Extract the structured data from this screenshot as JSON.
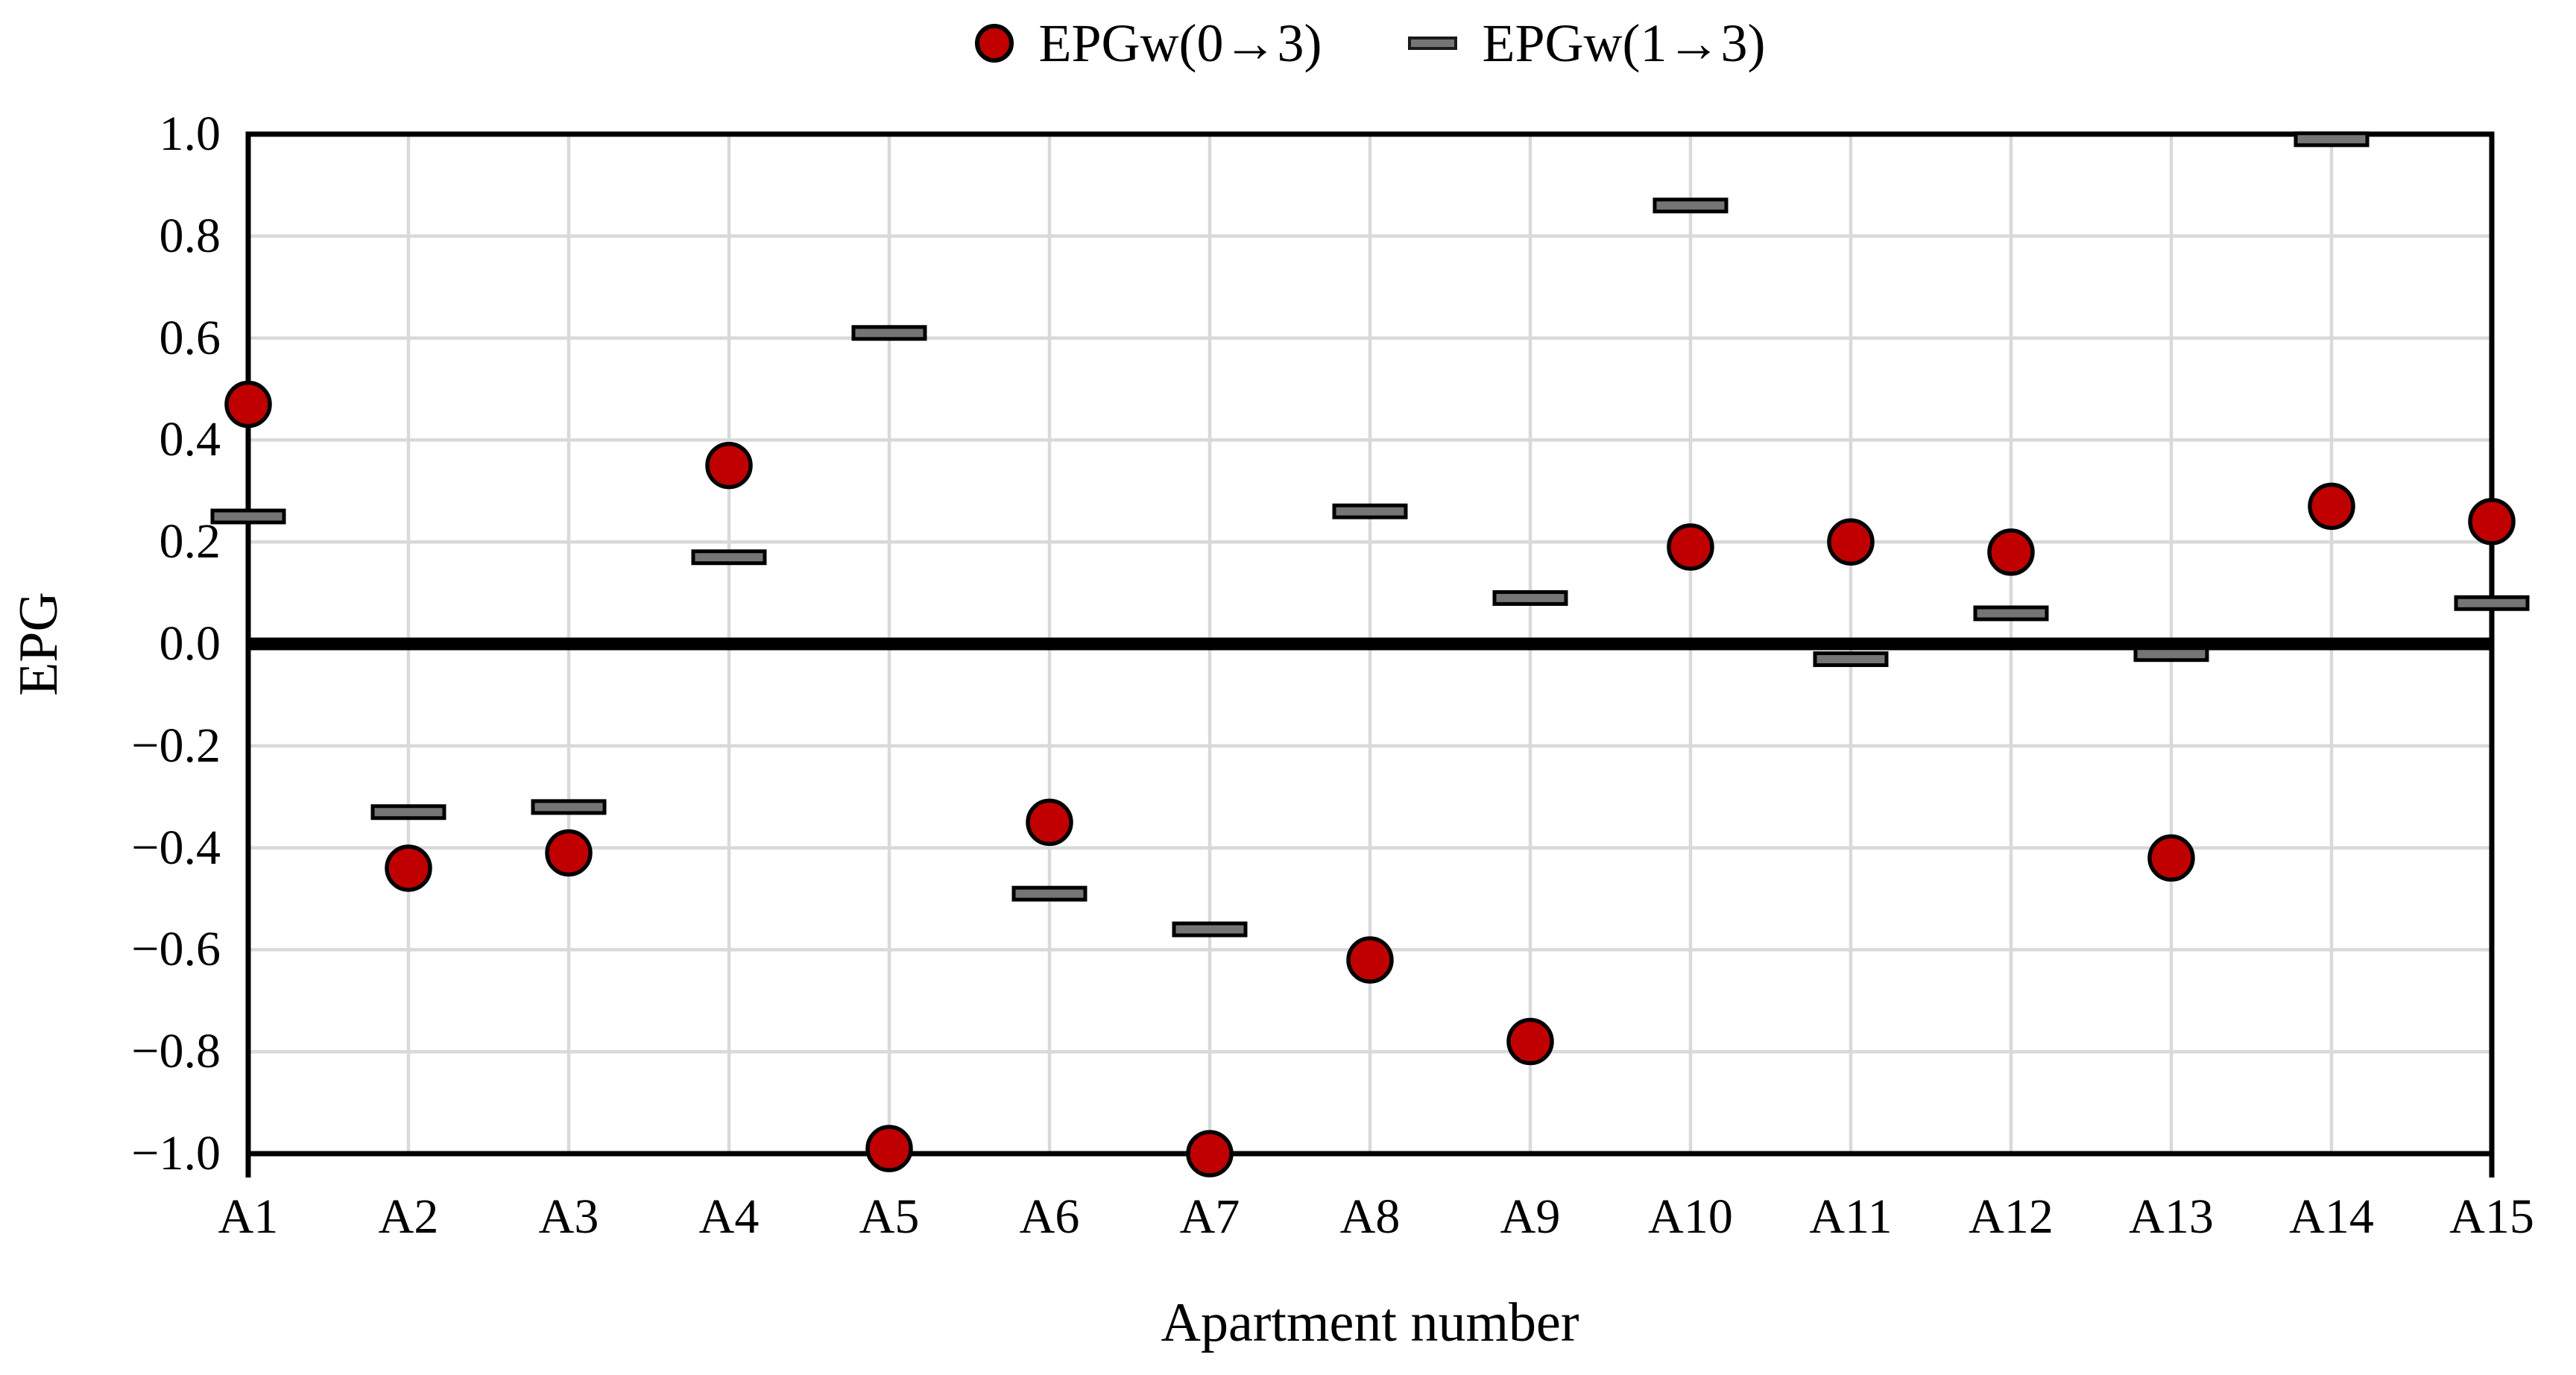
{
  "colors": {
    "series_circle_fill": "#C00000",
    "series_dash_fill": "#757575",
    "marker_outline": "#000000",
    "gridline": "#D9D9D9",
    "axis": "#000000",
    "background": "#FFFFFF"
  },
  "legend": {
    "items": [
      {
        "label": "EPGw(0→3)",
        "marker": "circle"
      },
      {
        "label": "EPGw(1→3)",
        "marker": "dash"
      }
    ]
  },
  "chart_data": {
    "type": "scatter",
    "title": "",
    "xlabel": "Apartment number",
    "ylabel": "EPG",
    "ylim": [
      -1.0,
      1.0
    ],
    "ytick_step": 0.2,
    "grid": true,
    "legend_position": "top-center",
    "categories": [
      "A1",
      "A2",
      "A3",
      "A4",
      "A5",
      "A6",
      "A7",
      "A8",
      "A9",
      "A10",
      "A11",
      "A12",
      "A13",
      "A14",
      "A15"
    ],
    "series": [
      {
        "name": "EPGw(0→3)",
        "marker": "circle",
        "color": "#C00000",
        "values": [
          0.47,
          -0.44,
          -0.41,
          0.35,
          -0.99,
          -0.35,
          -1.0,
          -0.62,
          -0.78,
          0.19,
          0.2,
          0.18,
          -0.42,
          0.27,
          0.24
        ]
      },
      {
        "name": "EPGw(1→3)",
        "marker": "dash",
        "color": "#757575",
        "values": [
          0.25,
          -0.33,
          -0.32,
          0.17,
          0.61,
          -0.49,
          -0.56,
          0.26,
          0.09,
          0.86,
          -0.03,
          0.06,
          -0.02,
          0.99,
          0.08
        ]
      }
    ]
  }
}
